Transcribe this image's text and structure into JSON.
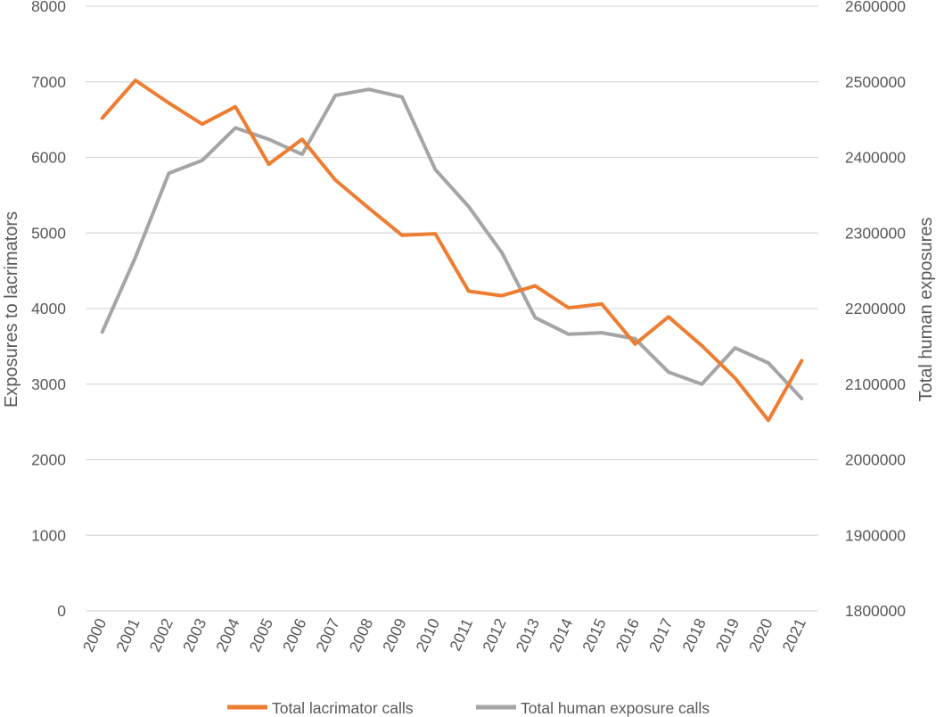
{
  "chart_data": {
    "type": "line",
    "categories": [
      "2000",
      "2001",
      "2002",
      "2003",
      "2004",
      "2005",
      "2006",
      "2007",
      "2008",
      "2009",
      "2010",
      "2011",
      "2012",
      "2013",
      "2014",
      "2015",
      "2016",
      "2017",
      "2018",
      "2019",
      "2020",
      "2021"
    ],
    "series": [
      {
        "name": "Total lacrimator calls",
        "axis": "left",
        "color": "#ED7D31",
        "values": [
          6520,
          7020,
          6720,
          6440,
          6670,
          5910,
          6240,
          5700,
          5330,
          4970,
          4990,
          4230,
          4170,
          4300,
          4010,
          4060,
          3530,
          3890,
          3510,
          3080,
          2520,
          3310
        ]
      },
      {
        "name": "Total human exposure calls",
        "axis": "right",
        "color": "#A5A5A5",
        "values": [
          2169000,
          2268000,
          2379000,
          2396000,
          2439000,
          2424000,
          2404000,
          2482000,
          2490000,
          2480000,
          2384000,
          2335000,
          2274000,
          2188000,
          2166000,
          2168000,
          2160000,
          2116000,
          2100000,
          2148000,
          2128000,
          2081000
        ]
      }
    ],
    "ylabel": "Exposures to lacrimators",
    "y2label": "Total human exposures",
    "ylim": [
      0,
      8000
    ],
    "y2lim": [
      1800000,
      2600000
    ],
    "yticks": [
      "0",
      "1000",
      "2000",
      "3000",
      "4000",
      "5000",
      "6000",
      "7000",
      "8000"
    ],
    "y2ticks": [
      "1800000",
      "1900000",
      "2000000",
      "2100000",
      "2200000",
      "2300000",
      "2400000",
      "2500000",
      "2600000"
    ],
    "grid": true,
    "legend": "bottom"
  }
}
